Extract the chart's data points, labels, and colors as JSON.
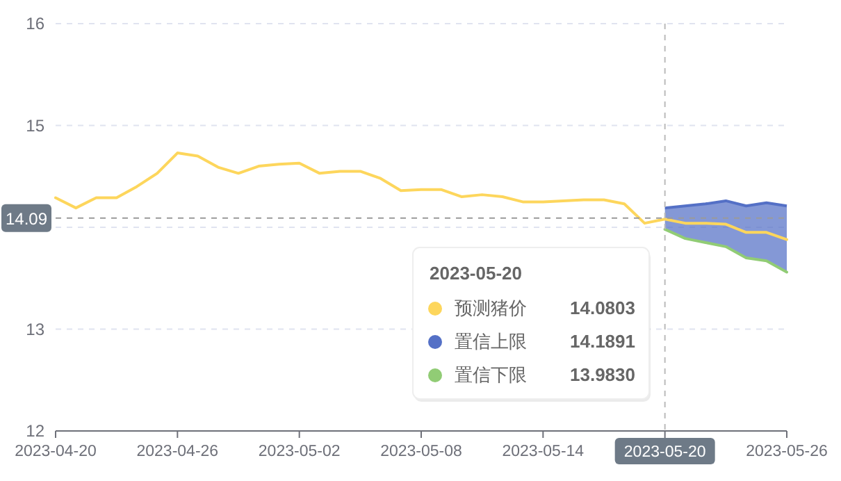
{
  "chart_data": {
    "type": "line",
    "series": [
      {
        "name": "预测猪价",
        "color": "#fdd65c",
        "x": [
          "2023-04-20",
          "2023-04-21",
          "2023-04-22",
          "2023-04-23",
          "2023-04-24",
          "2023-04-25",
          "2023-04-26",
          "2023-04-27",
          "2023-04-28",
          "2023-04-29",
          "2023-04-30",
          "2023-05-01",
          "2023-05-02",
          "2023-05-03",
          "2023-05-04",
          "2023-05-05",
          "2023-05-06",
          "2023-05-07",
          "2023-05-08",
          "2023-05-09",
          "2023-05-10",
          "2023-05-11",
          "2023-05-12",
          "2023-05-13",
          "2023-05-14",
          "2023-05-15",
          "2023-05-16",
          "2023-05-17",
          "2023-05-18",
          "2023-05-19",
          "2023-05-20",
          "2023-05-21",
          "2023-05-22",
          "2023-05-23",
          "2023-05-24",
          "2023-05-25",
          "2023-05-26"
        ],
        "values": [
          14.29,
          14.19,
          14.29,
          14.29,
          14.4,
          14.53,
          14.73,
          14.7,
          14.59,
          14.53,
          14.6,
          14.62,
          14.63,
          14.53,
          14.55,
          14.55,
          14.48,
          14.36,
          14.37,
          14.37,
          14.3,
          14.32,
          14.3,
          14.25,
          14.25,
          14.26,
          14.27,
          14.27,
          14.23,
          14.04,
          14.08,
          14.04,
          14.04,
          14.03,
          13.95,
          13.95,
          13.88
        ]
      },
      {
        "name": "置信上限",
        "color": "#5470c6",
        "type": "area",
        "x": [
          "2023-05-20",
          "2023-05-21",
          "2023-05-22",
          "2023-05-23",
          "2023-05-24",
          "2023-05-25",
          "2023-05-26"
        ],
        "values": [
          14.19,
          14.21,
          14.23,
          14.26,
          14.21,
          14.24,
          14.21
        ]
      },
      {
        "name": "置信下限",
        "color": "#91cc75",
        "type": "line",
        "x": [
          "2023-05-20",
          "2023-05-21",
          "2023-05-22",
          "2023-05-23",
          "2023-05-24",
          "2023-05-25",
          "2023-05-26"
        ],
        "values": [
          13.98,
          13.89,
          13.85,
          13.81,
          13.7,
          13.67,
          13.56
        ]
      }
    ],
    "xlim": [
      "2023-04-20",
      "2023-05-26"
    ],
    "xticks": [
      "2023-04-20",
      "2023-04-26",
      "2023-05-02",
      "2023-05-08",
      "2023-05-14",
      {
        "value": "2023-05-20",
        "label": null
      },
      "2023-05-26"
    ],
    "ylim": [
      12,
      16
    ],
    "yticks": [
      12,
      13,
      {
        "value": 14,
        "label": null
      },
      15,
      16
    ],
    "grid": "y",
    "ref_lines": [
      {
        "axis": "y",
        "value": 14.09,
        "label": "14.09",
        "color": "#9a9a9a",
        "line_style": "dashed"
      },
      {
        "axis": "x",
        "value": "2023-05-20",
        "label": "2023-05-20",
        "color": "#bbbbbb",
        "line_style": "dashed"
      }
    ],
    "legend": "bottom",
    "annotations": [
      "2023-05-20",
      "14.0803",
      "14.1891",
      "13.9830"
    ]
  }
}
